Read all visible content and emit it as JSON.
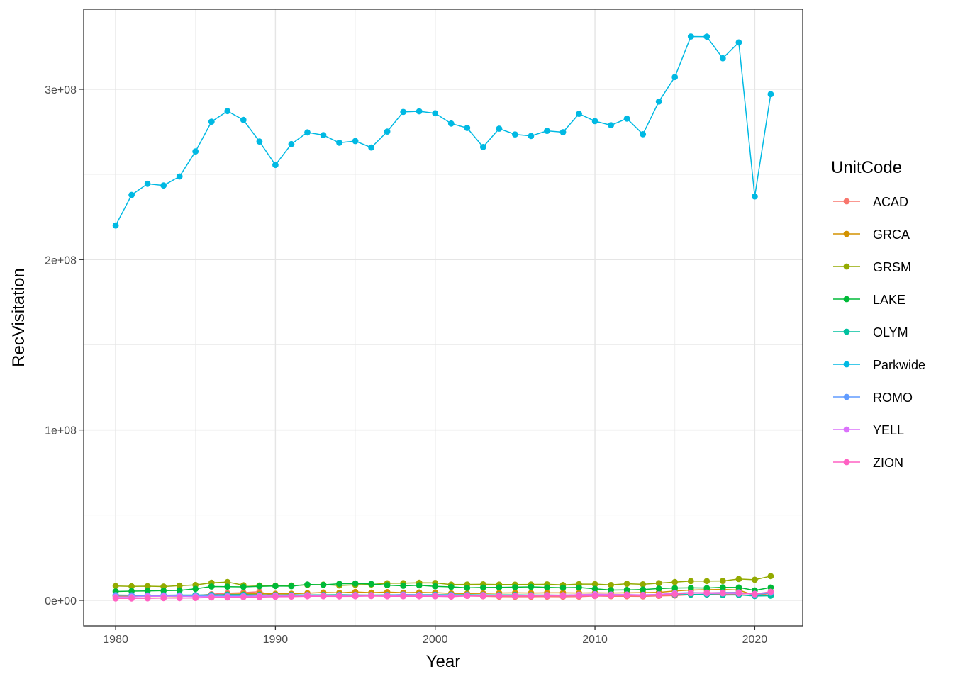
{
  "chart_data": {
    "type": "line",
    "title": "",
    "xlabel": "Year",
    "ylabel": "RecVisitation",
    "xlim": [
      1978,
      2023
    ],
    "ylim": [
      -15000000,
      347000000
    ],
    "x_ticks": [
      1980,
      1990,
      2000,
      2010,
      2020
    ],
    "x_tick_labels": [
      "1980",
      "1990",
      "2000",
      "2010",
      "2020"
    ],
    "y_ticks": [
      0,
      100000000,
      200000000,
      300000000
    ],
    "y_tick_labels": [
      "0e+00",
      "1e+08",
      "2e+08",
      "3e+08"
    ],
    "y_minor_ticks": [
      50000000,
      150000000,
      250000000
    ],
    "x_minor_ticks": [
      1985,
      1995,
      2005,
      2015
    ],
    "grid": true,
    "legend_title": "UnitCode",
    "legend_position": "right",
    "x": [
      1980,
      1981,
      1982,
      1983,
      1984,
      1985,
      1986,
      1987,
      1988,
      1989,
      1990,
      1991,
      1992,
      1993,
      1994,
      1995,
      1996,
      1997,
      1998,
      1999,
      2000,
      2001,
      2002,
      2003,
      2004,
      2005,
      2006,
      2007,
      2008,
      2009,
      2010,
      2011,
      2012,
      2013,
      2014,
      2015,
      2016,
      2017,
      2018,
      2019,
      2020,
      2021
    ],
    "series": [
      {
        "name": "ACAD",
        "color": "#F8766D",
        "values": [
          2800000,
          2600000,
          2500000,
          2400000,
          2300000,
          2800000,
          3600000,
          4200000,
          4500000,
          5100000,
          2300000,
          2600000,
          2700000,
          2700000,
          2700000,
          2800000,
          2700000,
          2700000,
          2600000,
          2600000,
          2500000,
          2500000,
          2600000,
          2400000,
          2200000,
          2100000,
          2100000,
          2200000,
          2100000,
          2200000,
          2500000,
          2400000,
          2400000,
          2300000,
          2600000,
          2800000,
          3300000,
          3500000,
          3500000,
          3400000,
          2700000,
          4100000
        ]
      },
      {
        "name": "GRCA",
        "color": "#D39200",
        "values": [
          2500000,
          2300000,
          2300000,
          2300000,
          2200000,
          2700000,
          3000000,
          3500000,
          3800000,
          3900000,
          3800000,
          3900000,
          4200000,
          4600000,
          4400000,
          4900000,
          4500000,
          4800000,
          4500000,
          4600000,
          4500000,
          4100000,
          4000000,
          4100000,
          4300000,
          4400000,
          4300000,
          4400000,
          4400000,
          4300000,
          4400000,
          4300000,
          4400000,
          4500000,
          4700000,
          5500000,
          6000000,
          6200000,
          6400000,
          6000000,
          2900000,
          4500000
        ]
      },
      {
        "name": "GRSM",
        "color": "#93AA00",
        "values": [
          8400000,
          8200000,
          8300000,
          8100000,
          8600000,
          9000000,
          10300000,
          10700000,
          8900000,
          8700000,
          8600000,
          8700000,
          9000000,
          9200000,
          8700000,
          9100000,
          9300000,
          10000000,
          10100000,
          10300000,
          10200000,
          9200000,
          9300000,
          9400000,
          9200000,
          9200000,
          9300000,
          9400000,
          9000000,
          9500000,
          9500000,
          9000000,
          9700000,
          9400000,
          10100000,
          10700000,
          11300000,
          11300000,
          11400000,
          12500000,
          12100000,
          14200000
        ]
      },
      {
        "name": "LAKE",
        "color": "#00BA38",
        "values": [
          5200000,
          5400000,
          5500000,
          5700000,
          5800000,
          6700000,
          8100000,
          8000000,
          7900000,
          8200000,
          8400000,
          8300000,
          9300000,
          9100000,
          9700000,
          9900000,
          9600000,
          8900000,
          8500000,
          8800000,
          8200000,
          7900000,
          7300000,
          7500000,
          7600000,
          7700000,
          7900000,
          7600000,
          7400000,
          7500000,
          6700000,
          6000000,
          6100000,
          6300000,
          6900000,
          7200000,
          7300000,
          7200000,
          7600000,
          7500000,
          5800000,
          7500000
        ]
      },
      {
        "name": "OLYM",
        "color": "#00C19F",
        "values": [
          3100000,
          3000000,
          3000000,
          3000000,
          3100000,
          3100000,
          3200000,
          3300000,
          3300000,
          3200000,
          3100000,
          3200000,
          3200000,
          3200000,
          3300000,
          3200000,
          3100000,
          3200000,
          3300000,
          3300000,
          3300000,
          3300000,
          3300000,
          3200000,
          3200000,
          3200000,
          3100000,
          3100000,
          3000000,
          3300000,
          3000000,
          3100000,
          3100000,
          3000000,
          3200000,
          3300000,
          3400000,
          3400000,
          3100000,
          3200000,
          2500000,
          2700000
        ]
      },
      {
        "name": "Parkwide",
        "color": "#00B9E3",
        "values": [
          220000000,
          238000000,
          244500000,
          243500000,
          248800000,
          263500000,
          281000000,
          287200000,
          282000000,
          269300000,
          255600000,
          267800000,
          274700000,
          273100000,
          268600000,
          269600000,
          265800000,
          275200000,
          286700000,
          287100000,
          285900000,
          279900000,
          277300000,
          266100000,
          276900000,
          273500000,
          272600000,
          275600000,
          274800000,
          285600000,
          281300000,
          278900000,
          282800000,
          273600000,
          292800000,
          307200000,
          331000000,
          330900000,
          318200000,
          327500000,
          237100000,
          297100000
        ]
      },
      {
        "name": "ROMO",
        "color": "#619CFF",
        "values": [
          3000000,
          2900000,
          2700000,
          2800000,
          2800000,
          2600000,
          2700000,
          2800000,
          2700000,
          2700000,
          2600000,
          2700000,
          2800000,
          2800000,
          2900000,
          2900000,
          2800000,
          3000000,
          3400000,
          3200000,
          3100000,
          3100000,
          3000000,
          3100000,
          2800000,
          2800000,
          2900000,
          2900000,
          2800000,
          2800000,
          2900000,
          3200000,
          3200000,
          3200000,
          3400000,
          4200000,
          4500000,
          4400000,
          4600000,
          4700000,
          3300000,
          4400000
        ]
      },
      {
        "name": "YELL",
        "color": "#DB72FB",
        "values": [
          2000000,
          2000000,
          2400000,
          2400000,
          2300000,
          2200000,
          2100000,
          2200000,
          2200000,
          2600000,
          2800000,
          2900000,
          3100000,
          2900000,
          3000000,
          3100000,
          3000000,
          2900000,
          3100000,
          3000000,
          2800000,
          2800000,
          3000000,
          3000000,
          2900000,
          2800000,
          2900000,
          3100000,
          3000000,
          3300000,
          3600000,
          3400000,
          3400000,
          3200000,
          3500000,
          4100000,
          4300000,
          4100000,
          4100000,
          4000000,
          3800000,
          4900000
        ]
      },
      {
        "name": "ZION",
        "color": "#FF61C3",
        "values": [
          1100000,
          1100000,
          1200000,
          1300000,
          1300000,
          1400000,
          1700000,
          1700000,
          1900000,
          1900000,
          2100000,
          2200000,
          2400000,
          2400000,
          2300000,
          2400000,
          2500000,
          2400000,
          2400000,
          2400000,
          2400000,
          2200000,
          2600000,
          2500000,
          2700000,
          2600000,
          2600000,
          2700000,
          2700000,
          2700000,
          2700000,
          2800000,
          3000000,
          2800000,
          3200000,
          3600000,
          4300000,
          4500000,
          4300000,
          4500000,
          3600000,
          5000000
        ]
      }
    ]
  }
}
